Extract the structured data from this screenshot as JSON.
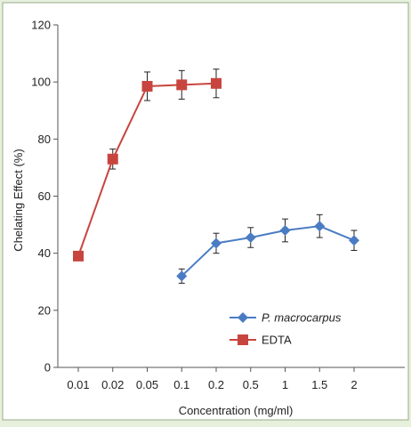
{
  "chart_data": {
    "type": "line",
    "title": "",
    "xlabel": "Concentration (mg/ml)",
    "ylabel": "Chelating Effect (%)",
    "ylim": [
      0,
      120
    ],
    "yticks": [
      0,
      20,
      40,
      60,
      80,
      100,
      120
    ],
    "categories": [
      "0.01",
      "0.02",
      "0.05",
      "0.1",
      "0.2",
      "0.5",
      "1",
      "1.5",
      "2"
    ],
    "grid": false,
    "legend_position": "bottom-right",
    "series": [
      {
        "name": "P. macrocarpus",
        "color": "#4a7cc4",
        "marker": "diamond",
        "x": [
          "0.1",
          "0.2",
          "0.5",
          "1",
          "1.5",
          "2"
        ],
        "values": [
          32,
          43.5,
          45.5,
          48,
          49.5,
          44.5
        ],
        "errors": [
          2.5,
          3.5,
          3.5,
          4,
          4,
          3.5
        ]
      },
      {
        "name": "EDTA",
        "color": "#c8453f",
        "marker": "square",
        "x": [
          "0.01",
          "0.02",
          "0.05",
          "0.1",
          "0.2"
        ],
        "values": [
          39,
          73,
          98.5,
          99,
          99.5
        ],
        "errors": [
          1.5,
          3.5,
          5,
          5,
          5
        ]
      }
    ]
  }
}
